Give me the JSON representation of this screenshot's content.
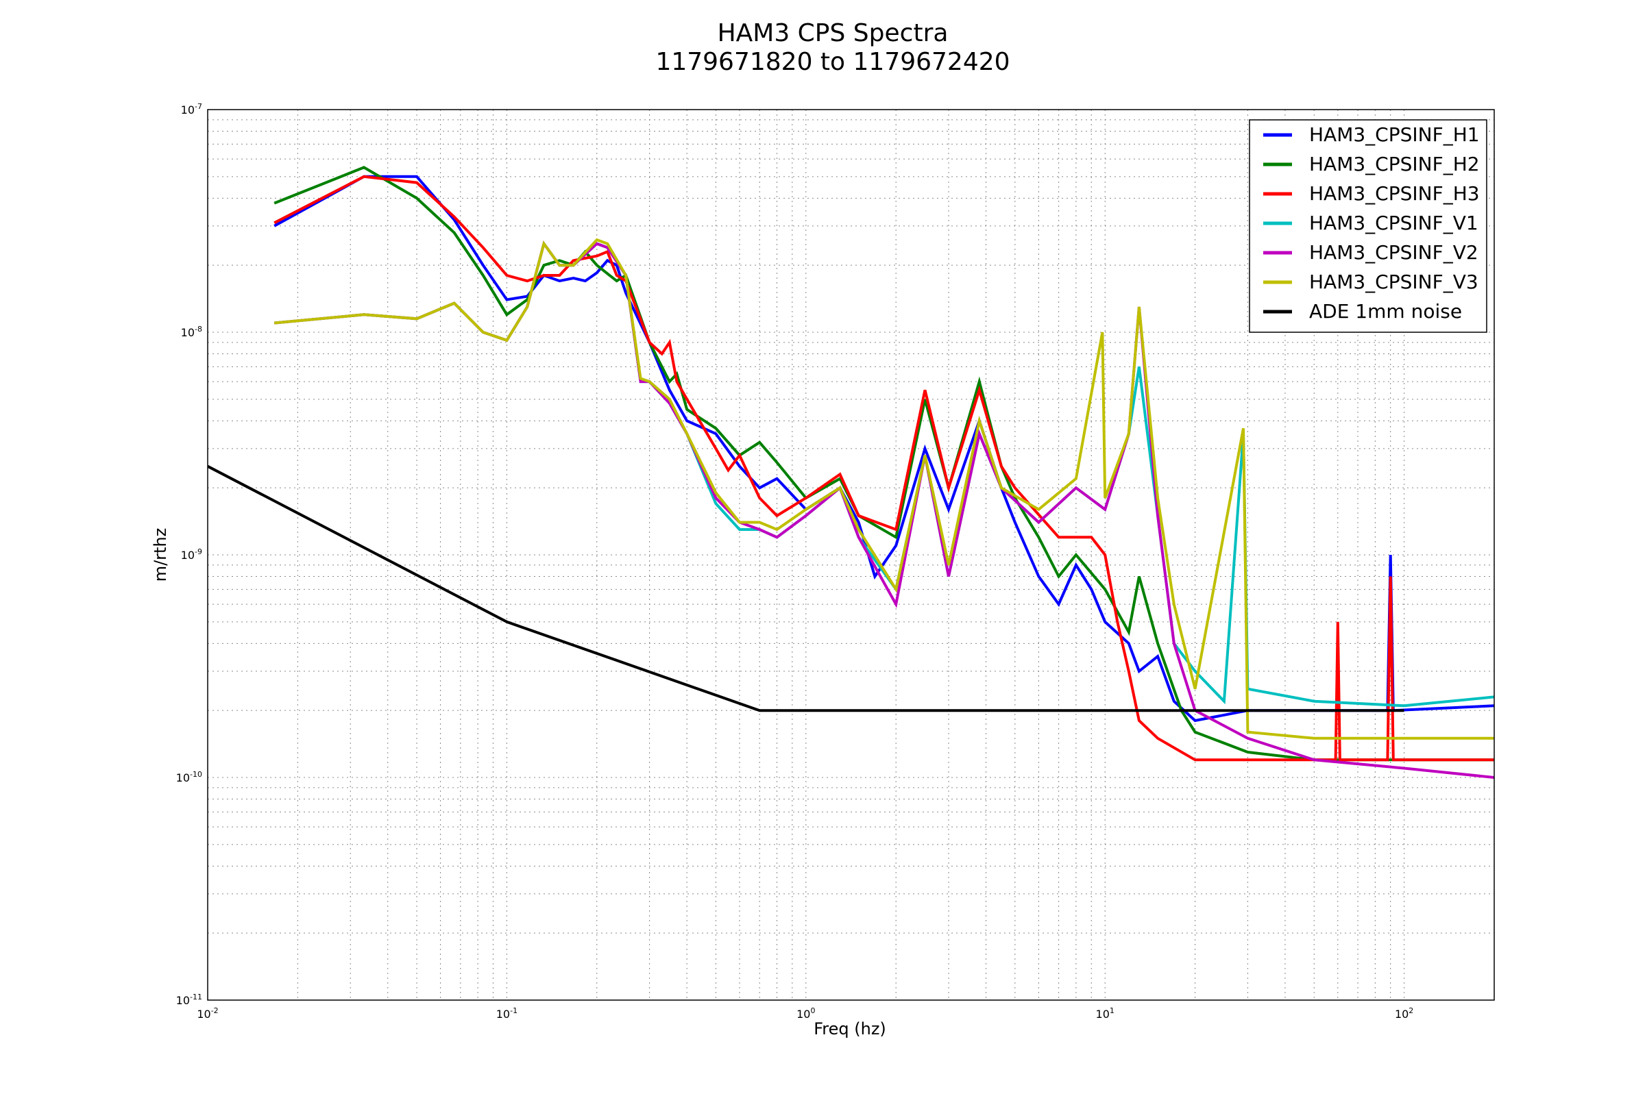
{
  "chart_data": {
    "type": "line",
    "title": "HAM3 CPS Spectra",
    "subtitle": "1179671820 to 1179672420",
    "xlabel": "Freq (hz)",
    "ylabel": "m/rthz",
    "xscale": "log",
    "yscale": "log",
    "xlim": [
      0.01,
      200
    ],
    "ylim": [
      1e-11,
      1e-07
    ],
    "grid": true,
    "legend_position": "top-right",
    "x_tick_labels": [
      {
        "v": 0.01,
        "base": "10",
        "exp": "-2"
      },
      {
        "v": 0.1,
        "base": "10",
        "exp": "-1"
      },
      {
        "v": 1,
        "base": "10",
        "exp": "0"
      },
      {
        "v": 10,
        "base": "10",
        "exp": "1"
      },
      {
        "v": 100,
        "base": "10",
        "exp": "2"
      }
    ],
    "y_tick_labels": [
      {
        "v": 1e-07,
        "base": "10",
        "exp": "-7"
      },
      {
        "v": 1e-08,
        "base": "10",
        "exp": "-8"
      },
      {
        "v": 1e-09,
        "base": "10",
        "exp": "-9"
      },
      {
        "v": 1e-10,
        "base": "10",
        "exp": "-10"
      },
      {
        "v": 1e-11,
        "base": "10",
        "exp": "-11"
      }
    ],
    "series": [
      {
        "name": "HAM3_CPSINF_H1",
        "color": "#0000ff",
        "points": [
          [
            0.0167,
            3e-08
          ],
          [
            0.0333,
            5e-08
          ],
          [
            0.05,
            5e-08
          ],
          [
            0.0667,
            3.2e-08
          ],
          [
            0.0833,
            2e-08
          ],
          [
            0.1,
            1.4e-08
          ],
          [
            0.117,
            1.45e-08
          ],
          [
            0.133,
            1.8e-08
          ],
          [
            0.15,
            1.7e-08
          ],
          [
            0.167,
            1.75e-08
          ],
          [
            0.183,
            1.7e-08
          ],
          [
            0.2,
            1.85e-08
          ],
          [
            0.217,
            2.1e-08
          ],
          [
            0.233,
            2e-08
          ],
          [
            0.25,
            1.5e-08
          ],
          [
            0.3,
            9e-09
          ],
          [
            0.35,
            5.5e-09
          ],
          [
            0.4,
            4e-09
          ],
          [
            0.5,
            3.5e-09
          ],
          [
            0.6,
            2.5e-09
          ],
          [
            0.7,
            2e-09
          ],
          [
            0.8,
            2.2e-09
          ],
          [
            1,
            1.6e-09
          ],
          [
            1.3,
            2e-09
          ],
          [
            1.5,
            1.4e-09
          ],
          [
            1.7,
            8e-10
          ],
          [
            2,
            1.1e-09
          ],
          [
            2.5,
            3e-09
          ],
          [
            3,
            1.6e-09
          ],
          [
            3.8,
            4e-09
          ],
          [
            4.5,
            2e-09
          ],
          [
            5,
            1.4e-09
          ],
          [
            6,
            8e-10
          ],
          [
            7,
            6e-10
          ],
          [
            8,
            9e-10
          ],
          [
            9,
            7e-10
          ],
          [
            10,
            5e-10
          ],
          [
            12,
            4e-10
          ],
          [
            13,
            3e-10
          ],
          [
            15,
            3.5e-10
          ],
          [
            17,
            2.2e-10
          ],
          [
            20,
            1.8e-10
          ],
          [
            30,
            2e-10
          ],
          [
            50,
            2e-10
          ],
          [
            88,
            2e-10
          ],
          [
            90,
            1e-09
          ],
          [
            92,
            2e-10
          ],
          [
            200,
            2.1e-10
          ]
        ]
      },
      {
        "name": "HAM3_CPSINF_H2",
        "color": "#008000",
        "points": [
          [
            0.0167,
            3.8e-08
          ],
          [
            0.0333,
            5.5e-08
          ],
          [
            0.05,
            4e-08
          ],
          [
            0.0667,
            2.8e-08
          ],
          [
            0.0833,
            1.8e-08
          ],
          [
            0.1,
            1.2e-08
          ],
          [
            0.117,
            1.4e-08
          ],
          [
            0.133,
            2e-08
          ],
          [
            0.15,
            2.1e-08
          ],
          [
            0.167,
            2e-08
          ],
          [
            0.183,
            2.3e-08
          ],
          [
            0.2,
            2e-08
          ],
          [
            0.233,
            1.7e-08
          ],
          [
            0.25,
            1.8e-08
          ],
          [
            0.3,
            9e-09
          ],
          [
            0.35,
            6e-09
          ],
          [
            0.37,
            6.5e-09
          ],
          [
            0.4,
            4.5e-09
          ],
          [
            0.5,
            3.7e-09
          ],
          [
            0.6,
            2.8e-09
          ],
          [
            0.7,
            3.2e-09
          ],
          [
            0.8,
            2.6e-09
          ],
          [
            1,
            1.8e-09
          ],
          [
            1.3,
            2.2e-09
          ],
          [
            1.5,
            1.5e-09
          ],
          [
            2,
            1.2e-09
          ],
          [
            2.5,
            5e-09
          ],
          [
            3,
            2e-09
          ],
          [
            3.8,
            6e-09
          ],
          [
            4.5,
            2.5e-09
          ],
          [
            5,
            1.8e-09
          ],
          [
            6,
            1.2e-09
          ],
          [
            7,
            8e-10
          ],
          [
            8,
            1e-09
          ],
          [
            10,
            7e-10
          ],
          [
            12,
            4.5e-10
          ],
          [
            13,
            8e-10
          ],
          [
            15,
            4e-10
          ],
          [
            18,
            2e-10
          ],
          [
            20,
            1.6e-10
          ],
          [
            30,
            1.3e-10
          ],
          [
            50,
            1.2e-10
          ],
          [
            100,
            1.2e-10
          ],
          [
            200,
            1.2e-10
          ]
        ]
      },
      {
        "name": "HAM3_CPSINF_H3",
        "color": "#ff0000",
        "points": [
          [
            0.0167,
            3.1e-08
          ],
          [
            0.0333,
            5e-08
          ],
          [
            0.05,
            4.7e-08
          ],
          [
            0.0667,
            3.3e-08
          ],
          [
            0.0833,
            2.4e-08
          ],
          [
            0.1,
            1.8e-08
          ],
          [
            0.117,
            1.7e-08
          ],
          [
            0.133,
            1.8e-08
          ],
          [
            0.15,
            1.8e-08
          ],
          [
            0.167,
            2.1e-08
          ],
          [
            0.2,
            2.2e-08
          ],
          [
            0.217,
            2.3e-08
          ],
          [
            0.233,
            1.8e-08
          ],
          [
            0.25,
            1.7e-08
          ],
          [
            0.3,
            9e-09
          ],
          [
            0.33,
            8e-09
          ],
          [
            0.35,
            9e-09
          ],
          [
            0.37,
            6e-09
          ],
          [
            0.4,
            5e-09
          ],
          [
            0.5,
            3e-09
          ],
          [
            0.55,
            2.4e-09
          ],
          [
            0.6,
            2.8e-09
          ],
          [
            0.7,
            1.8e-09
          ],
          [
            0.8,
            1.5e-09
          ],
          [
            1,
            1.8e-09
          ],
          [
            1.3,
            2.3e-09
          ],
          [
            1.5,
            1.5e-09
          ],
          [
            2,
            1.3e-09
          ],
          [
            2.5,
            5.5e-09
          ],
          [
            3,
            2e-09
          ],
          [
            3.8,
            5.5e-09
          ],
          [
            4.5,
            2.5e-09
          ],
          [
            5,
            2e-09
          ],
          [
            7,
            1.2e-09
          ],
          [
            9,
            1.2e-09
          ],
          [
            10,
            1e-09
          ],
          [
            11,
            5e-10
          ],
          [
            12,
            3e-10
          ],
          [
            13,
            1.8e-10
          ],
          [
            15,
            1.5e-10
          ],
          [
            20,
            1.2e-10
          ],
          [
            30,
            1.2e-10
          ],
          [
            59,
            1.2e-10
          ],
          [
            60,
            5e-10
          ],
          [
            61,
            1.2e-10
          ],
          [
            88,
            1.2e-10
          ],
          [
            90,
            8e-10
          ],
          [
            92,
            1.2e-10
          ],
          [
            200,
            1.2e-10
          ]
        ]
      },
      {
        "name": "HAM3_CPSINF_V1",
        "color": "#00bfbf",
        "points": [
          [
            0.0167,
            1.1e-08
          ],
          [
            0.0333,
            1.2e-08
          ],
          [
            0.05,
            1.15e-08
          ],
          [
            0.0667,
            1.35e-08
          ],
          [
            0.0833,
            1e-08
          ],
          [
            0.1,
            9.2e-09
          ],
          [
            0.117,
            1.3e-08
          ],
          [
            0.133,
            2.5e-08
          ],
          [
            0.15,
            2e-08
          ],
          [
            0.167,
            2e-08
          ],
          [
            0.2,
            2.5e-08
          ],
          [
            0.217,
            2.4e-08
          ],
          [
            0.25,
            1.8e-08
          ],
          [
            0.28,
            6e-09
          ],
          [
            0.3,
            6e-09
          ],
          [
            0.35,
            4.8e-09
          ],
          [
            0.4,
            3.5e-09
          ],
          [
            0.5,
            1.7e-09
          ],
          [
            0.6,
            1.3e-09
          ],
          [
            0.7,
            1.3e-09
          ],
          [
            0.8,
            1.2e-09
          ],
          [
            1,
            1.5e-09
          ],
          [
            1.3,
            2e-09
          ],
          [
            1.5,
            1.2e-09
          ],
          [
            2,
            7e-10
          ],
          [
            2.5,
            2.8e-09
          ],
          [
            3,
            8e-10
          ],
          [
            3.8,
            3.5e-09
          ],
          [
            4.5,
            2e-09
          ],
          [
            6,
            1.4e-09
          ],
          [
            8,
            2e-09
          ],
          [
            10,
            1.6e-09
          ],
          [
            12,
            3.5e-09
          ],
          [
            13,
            7e-09
          ],
          [
            15,
            1.5e-09
          ],
          [
            17,
            4e-10
          ],
          [
            20,
            3e-10
          ],
          [
            25,
            2.2e-10
          ],
          [
            29,
            3.5e-09
          ],
          [
            30,
            2.5e-10
          ],
          [
            50,
            2.2e-10
          ],
          [
            100,
            2.1e-10
          ],
          [
            200,
            2.3e-10
          ]
        ]
      },
      {
        "name": "HAM3_CPSINF_V2",
        "color": "#bf00bf",
        "points": [
          [
            0.0167,
            1.1e-08
          ],
          [
            0.0333,
            1.2e-08
          ],
          [
            0.05,
            1.15e-08
          ],
          [
            0.0667,
            1.35e-08
          ],
          [
            0.0833,
            1e-08
          ],
          [
            0.1,
            9.2e-09
          ],
          [
            0.117,
            1.3e-08
          ],
          [
            0.133,
            2.5e-08
          ],
          [
            0.15,
            2e-08
          ],
          [
            0.167,
            2e-08
          ],
          [
            0.2,
            2.5e-08
          ],
          [
            0.217,
            2.4e-08
          ],
          [
            0.25,
            1.8e-08
          ],
          [
            0.28,
            6e-09
          ],
          [
            0.3,
            6e-09
          ],
          [
            0.35,
            4.8e-09
          ],
          [
            0.4,
            3.5e-09
          ],
          [
            0.5,
            1.8e-09
          ],
          [
            0.6,
            1.4e-09
          ],
          [
            0.7,
            1.3e-09
          ],
          [
            0.8,
            1.2e-09
          ],
          [
            1,
            1.5e-09
          ],
          [
            1.3,
            2e-09
          ],
          [
            1.5,
            1.2e-09
          ],
          [
            2,
            6e-10
          ],
          [
            2.5,
            2.8e-09
          ],
          [
            3,
            8e-10
          ],
          [
            3.8,
            3.5e-09
          ],
          [
            4.5,
            2e-09
          ],
          [
            6,
            1.4e-09
          ],
          [
            8,
            2e-09
          ],
          [
            10,
            1.6e-09
          ],
          [
            12,
            3.5e-09
          ],
          [
            13,
            1.3e-08
          ],
          [
            15,
            1.5e-09
          ],
          [
            17,
            4e-10
          ],
          [
            20,
            2e-10
          ],
          [
            30,
            1.5e-10
          ],
          [
            50,
            1.2e-10
          ],
          [
            100,
            1.1e-10
          ],
          [
            200,
            1e-10
          ]
        ]
      },
      {
        "name": "HAM3_CPSINF_V3",
        "color": "#bfbf00",
        "points": [
          [
            0.0167,
            1.1e-08
          ],
          [
            0.0333,
            1.2e-08
          ],
          [
            0.05,
            1.15e-08
          ],
          [
            0.0667,
            1.35e-08
          ],
          [
            0.0833,
            1e-08
          ],
          [
            0.1,
            9.2e-09
          ],
          [
            0.117,
            1.3e-08
          ],
          [
            0.133,
            2.5e-08
          ],
          [
            0.15,
            2e-08
          ],
          [
            0.167,
            2e-08
          ],
          [
            0.2,
            2.6e-08
          ],
          [
            0.217,
            2.5e-08
          ],
          [
            0.25,
            1.8e-08
          ],
          [
            0.28,
            6.2e-09
          ],
          [
            0.3,
            6e-09
          ],
          [
            0.35,
            5e-09
          ],
          [
            0.4,
            3.5e-09
          ],
          [
            0.5,
            1.9e-09
          ],
          [
            0.6,
            1.4e-09
          ],
          [
            0.7,
            1.4e-09
          ],
          [
            0.8,
            1.3e-09
          ],
          [
            1,
            1.6e-09
          ],
          [
            1.3,
            2e-09
          ],
          [
            1.5,
            1.3e-09
          ],
          [
            2,
            7e-10
          ],
          [
            2.5,
            2.8e-09
          ],
          [
            3,
            9e-10
          ],
          [
            3.8,
            4e-09
          ],
          [
            4.5,
            2e-09
          ],
          [
            6,
            1.6e-09
          ],
          [
            8,
            2.2e-09
          ],
          [
            9.8,
            1e-08
          ],
          [
            10,
            1.8e-09
          ],
          [
            12,
            3.5e-09
          ],
          [
            13,
            1.3e-08
          ],
          [
            15,
            1.8e-09
          ],
          [
            17,
            6e-10
          ],
          [
            20,
            2.5e-10
          ],
          [
            29,
            3.7e-09
          ],
          [
            30,
            1.6e-10
          ],
          [
            50,
            1.5e-10
          ],
          [
            100,
            1.5e-10
          ],
          [
            200,
            1.5e-10
          ]
        ]
      },
      {
        "name": "ADE 1mm noise",
        "color": "#000000",
        "points": [
          [
            0.01,
            2.5e-09
          ],
          [
            0.1,
            5e-10
          ],
          [
            0.7,
            2e-10
          ],
          [
            100,
            2e-10
          ]
        ]
      }
    ]
  }
}
